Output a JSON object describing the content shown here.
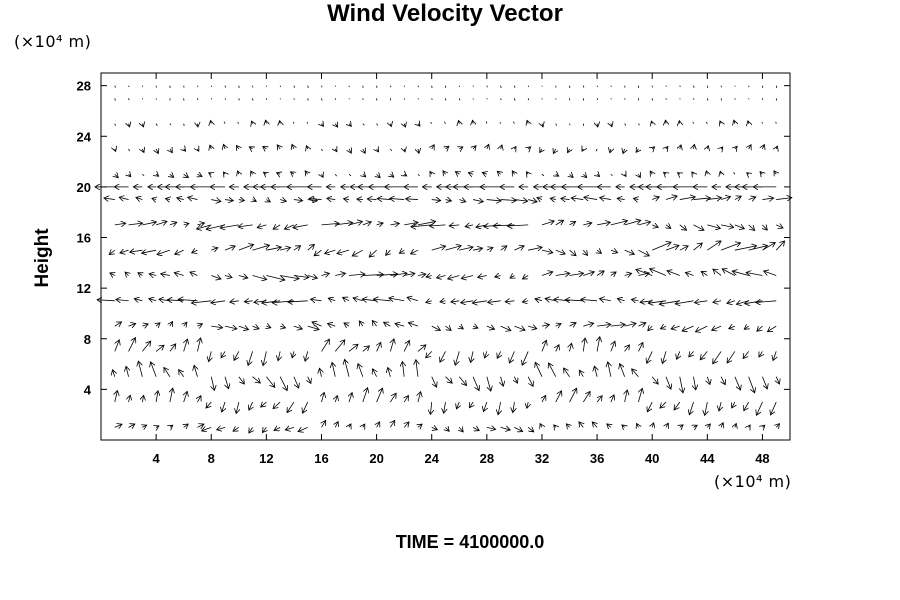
{
  "chart_data": {
    "type": "vector_field",
    "title": "Wind Velocity Vector",
    "ylabel": "Height",
    "y_unit_label": "(×10⁴ m)",
    "x_unit_label": "(×10⁴ m)",
    "footer": "TIME = 4100000.0",
    "xlim": [
      0,
      50
    ],
    "ylim": [
      0,
      29
    ],
    "x_ticks": [
      4,
      8,
      12,
      16,
      20,
      24,
      28,
      32,
      36,
      40,
      44,
      48
    ],
    "y_ticks": [
      4,
      8,
      12,
      16,
      20,
      24,
      28
    ],
    "x_tick_labels": [
      "4",
      "8",
      "12",
      "16",
      "20",
      "24",
      "28",
      "32",
      "36",
      "40",
      "44",
      "48"
    ],
    "y_tick_labels": [
      "4",
      "8",
      "12",
      "16",
      "20",
      "24",
      "28"
    ],
    "grid": false,
    "vectors": {
      "grid_x": [
        0,
        1,
        2,
        3,
        4,
        5,
        6,
        7,
        8,
        9,
        10,
        11,
        12,
        13,
        14,
        15,
        16,
        17,
        18,
        19,
        20,
        21,
        22,
        23,
        24,
        25,
        26,
        27,
        28,
        29,
        30,
        31,
        32,
        33,
        34,
        35,
        36,
        37,
        38,
        39,
        40,
        41,
        42,
        43,
        44,
        45,
        46,
        47,
        48,
        49,
        50
      ],
      "grid_y": [
        1,
        3,
        5,
        7,
        9,
        11,
        13,
        15,
        17,
        19,
        20,
        21,
        23,
        25,
        27,
        28
      ],
      "u_band_by_y": {
        "1": [
          0.6,
          -0.8,
          0.4,
          0.8,
          -0.4,
          0.3
        ],
        "3": [
          0.3,
          -0.6,
          0.5,
          -0.3,
          0.6,
          -0.5
        ],
        "5": [
          -0.5,
          0.7,
          -0.4,
          0.6,
          -0.6,
          0.5
        ],
        "7": [
          0.7,
          -0.4,
          0.8,
          -0.5,
          0.4,
          -0.7
        ],
        "9": [
          0.6,
          1.0,
          -0.8,
          0.9,
          1.2,
          -1.0
        ],
        "11": [
          -1.6,
          -1.8,
          -1.4,
          -1.2,
          -1.5,
          -1.7
        ],
        "13": [
          -0.8,
          1.6,
          1.8,
          -1.0,
          1.2,
          -1.4
        ],
        "15": [
          -1.2,
          1.4,
          -1.0,
          1.3,
          0.9,
          1.8
        ],
        "17": [
          1.2,
          -1.6,
          1.5,
          -1.8,
          1.4,
          1.1
        ],
        "19": [
          -0.9,
          0.8,
          -1.2,
          1.3,
          -1.1,
          1.4
        ],
        "20": [
          -1.8,
          -1.9,
          -1.8,
          -1.9,
          -1.8,
          -1.9
        ],
        "21": [
          0.4,
          -0.3,
          0.3,
          -0.4,
          0.3,
          -0.2
        ],
        "23": [
          0.2,
          -0.3,
          0.2,
          0.3,
          -0.2,
          0.2
        ],
        "25": [
          0.1,
          -0.1,
          0.2,
          -0.1,
          0.1,
          -0.1
        ],
        "27": [
          0.05,
          0.05,
          0.05,
          0.05,
          0.05,
          0.05
        ],
        "28": [
          0.05,
          0.05,
          0.05,
          0.05,
          0.05,
          0.05
        ]
      },
      "w_band_by_y": {
        "1": [
          0.3,
          -0.5,
          0.6,
          -0.4,
          0.5,
          0.4
        ],
        "3": [
          1.2,
          -1.0,
          1.3,
          -1.1,
          1.2,
          -1.2
        ],
        "5": [
          1.4,
          -1.2,
          1.5,
          -1.3,
          1.3,
          -1.4
        ],
        "7": [
          1.2,
          -1.3,
          1.1,
          -1.2,
          1.3,
          -1.1
        ],
        "9": [
          0.4,
          -0.3,
          0.5,
          -0.4,
          0.3,
          -0.5
        ],
        "11": [
          0.2,
          -0.2,
          0.3,
          -0.2,
          0.2,
          -0.3
        ],
        "13": [
          0.3,
          -0.4,
          0.2,
          -0.3,
          0.4,
          0.6
        ],
        "15": [
          -0.4,
          0.5,
          -0.6,
          0.4,
          -0.5,
          0.8
        ],
        "17": [
          0.3,
          -0.4,
          0.3,
          -0.2,
          0.4,
          -0.5
        ],
        "19": [
          0.2,
          -0.2,
          0.1,
          -0.2,
          0.2,
          0.3
        ],
        "20": [
          0.0,
          0.0,
          0.0,
          0.0,
          0.0,
          0.0
        ],
        "21": [
          -0.3,
          0.3,
          -0.3,
          0.3,
          -0.3,
          0.3
        ],
        "23": [
          -0.4,
          0.4,
          -0.4,
          0.4,
          -0.4,
          0.4
        ],
        "25": [
          -0.3,
          0.3,
          -0.3,
          0.3,
          -0.3,
          0.3
        ],
        "27": [
          -0.2,
          -0.2,
          -0.2,
          -0.2,
          -0.2,
          -0.2
        ],
        "28": [
          -0.2,
          -0.2,
          -0.2,
          -0.2,
          -0.2,
          -0.2
        ]
      },
      "band_edges_x": [
        0,
        8,
        16,
        24,
        32,
        40,
        50
      ]
    }
  }
}
